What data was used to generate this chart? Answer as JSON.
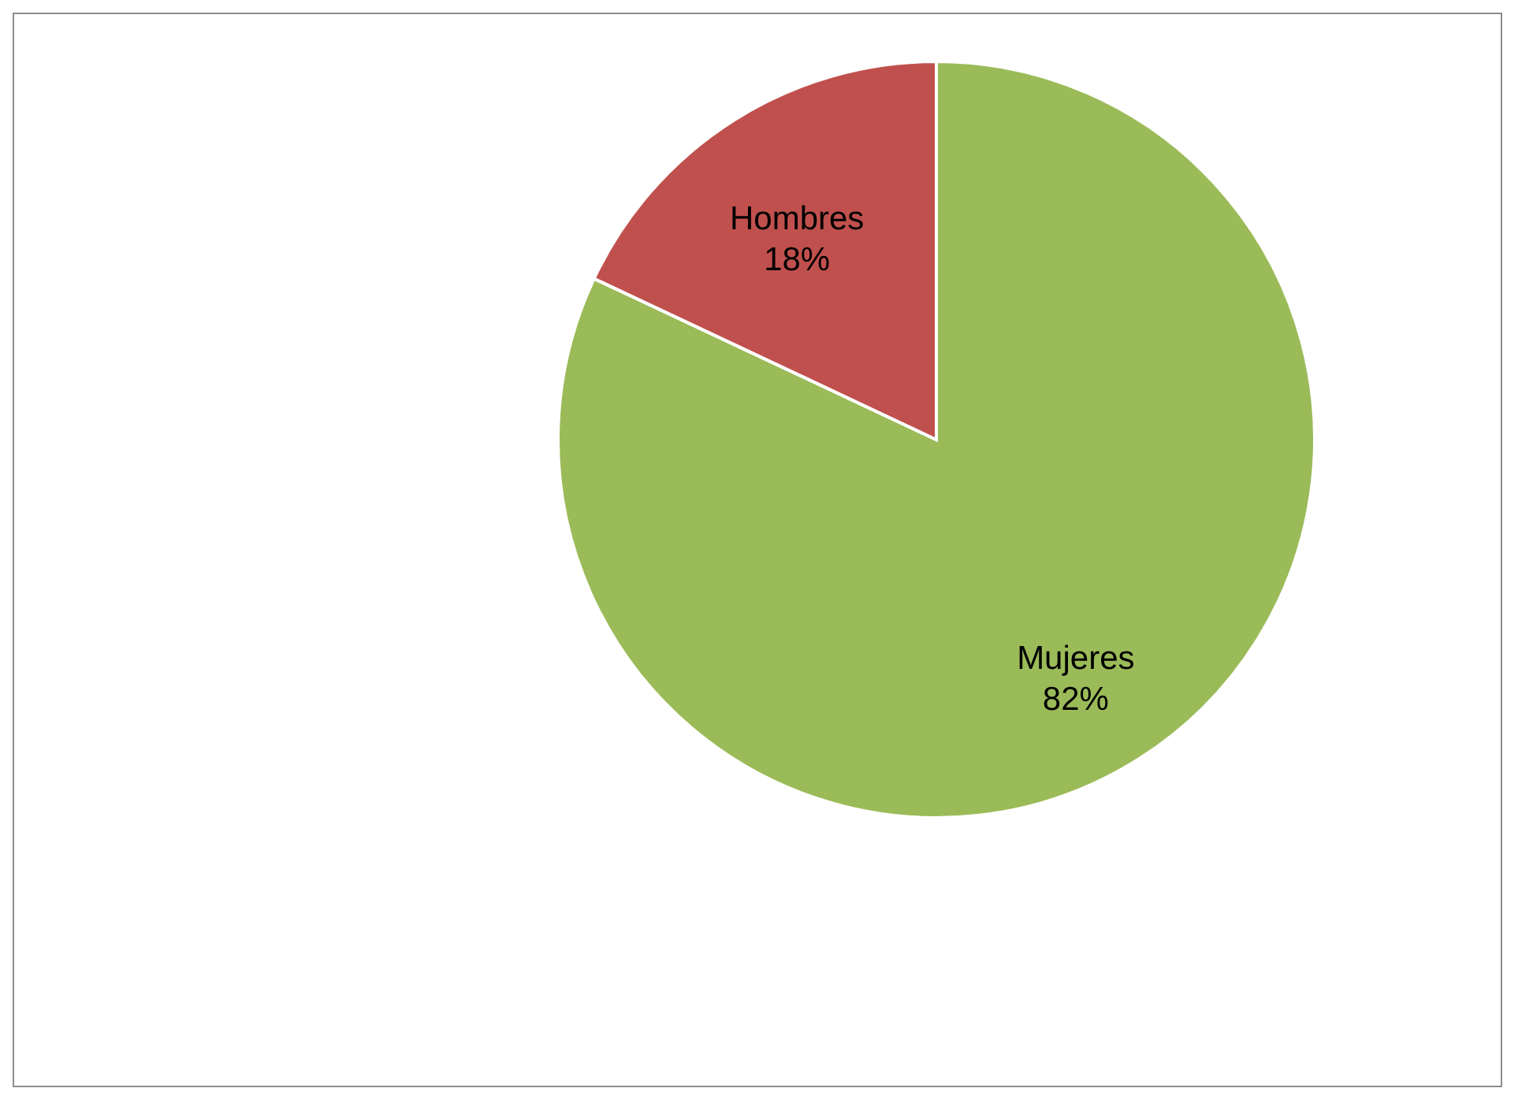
{
  "chart_data": {
    "type": "pie",
    "categories": [
      "Mujeres",
      "Hombres"
    ],
    "values": [
      82,
      18
    ],
    "colors": [
      "#9bbb59",
      "#c0504d"
    ],
    "value_labels": [
      "82%",
      "18%"
    ]
  }
}
